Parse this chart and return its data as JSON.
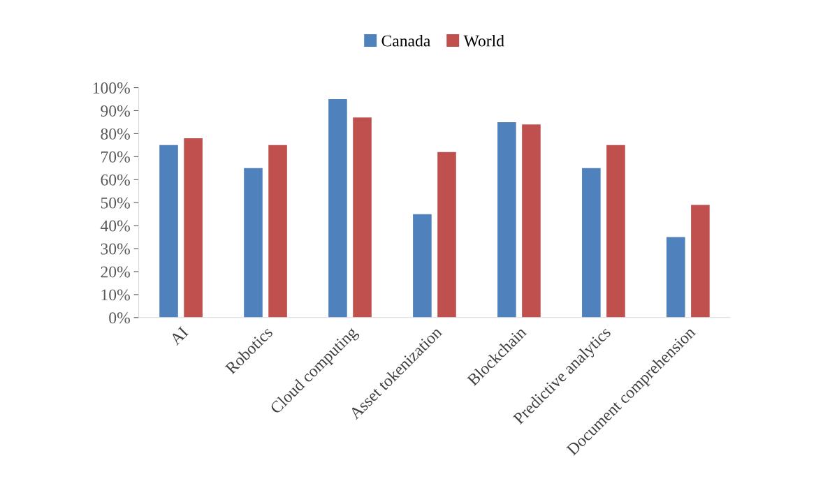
{
  "chart_data": {
    "type": "bar",
    "categories": [
      "AI",
      "Robotics",
      "Cloud computing",
      "Asset tokenization",
      "Blockchain",
      "Predictive analytics",
      "Document comprehension"
    ],
    "series": [
      {
        "name": "Canada",
        "color": "#4f81bd",
        "values": [
          75,
          65,
          95,
          45,
          85,
          65,
          35
        ]
      },
      {
        "name": "World",
        "color": "#c0504d",
        "values": [
          78,
          75,
          87,
          72,
          84,
          75,
          49
        ]
      }
    ],
    "ylim": [
      0,
      100
    ],
    "yticks": [
      {
        "value": 0,
        "label": "0%"
      },
      {
        "value": 10,
        "label": "10%"
      },
      {
        "value": 20,
        "label": "20%"
      },
      {
        "value": 30,
        "label": "30%"
      },
      {
        "value": 40,
        "label": "40%"
      },
      {
        "value": 50,
        "label": "50%"
      },
      {
        "value": 60,
        "label": "60%"
      },
      {
        "value": 70,
        "label": "70%"
      },
      {
        "value": 80,
        "label": "80%"
      },
      {
        "value": 90,
        "label": "90%"
      },
      {
        "value": 100,
        "label": "100%"
      }
    ],
    "grid": false,
    "legend": "top"
  }
}
